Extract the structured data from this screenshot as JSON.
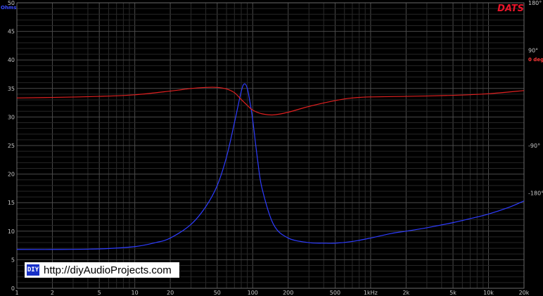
{
  "chart_data": {
    "type": "line",
    "title": "",
    "brand": "DATS",
    "ylabel_left": "Ohms",
    "ylabel_right_zero": "0 deg",
    "x_scale": "log",
    "xlim": [
      1,
      20000
    ],
    "ylim_left": [
      0,
      50
    ],
    "ylim_right": [
      -360,
      180
    ],
    "grid": true,
    "x_ticks": [
      {
        "value": 1,
        "label": "1"
      },
      {
        "value": 2,
        "label": "2"
      },
      {
        "value": 5,
        "label": "5"
      },
      {
        "value": 10,
        "label": "10"
      },
      {
        "value": 20,
        "label": "20"
      },
      {
        "value": 50,
        "label": "50"
      },
      {
        "value": 100,
        "label": "100"
      },
      {
        "value": 200,
        "label": "200"
      },
      {
        "value": 500,
        "label": "500"
      },
      {
        "value": 1000,
        "label": "1kHz"
      },
      {
        "value": 2000,
        "label": "2k"
      },
      {
        "value": 5000,
        "label": "5k"
      },
      {
        "value": 10000,
        "label": "10k"
      },
      {
        "value": 20000,
        "label": "20k"
      }
    ],
    "y_ticks_left": [
      0,
      5,
      10,
      15,
      20,
      25,
      30,
      35,
      40,
      45,
      50
    ],
    "y_ticks_right": [
      {
        "value": 180,
        "label": "180°"
      },
      {
        "value": 90,
        "label": "90°"
      },
      {
        "value": -90,
        "label": "-90°"
      },
      {
        "value": -180,
        "label": "-180°"
      }
    ],
    "series": [
      {
        "axis": "left",
        "color": "#2e3cff",
        "x": [
          1,
          2,
          5,
          10,
          15,
          20,
          30,
          40,
          50,
          60,
          70,
          80,
          85,
          90,
          95,
          100,
          110,
          120,
          150,
          200,
          300,
          400,
          500,
          700,
          1000,
          1500,
          2000,
          3000,
          5000,
          7000,
          10000,
          15000,
          20000
        ],
        "y": [
          6.8,
          6.8,
          6.9,
          7.3,
          8.0,
          8.8,
          11.2,
          14.3,
          18.0,
          23.0,
          29.0,
          34.5,
          35.8,
          35.0,
          32.5,
          29.5,
          22.5,
          17.5,
          11.2,
          8.8,
          8.0,
          7.9,
          7.9,
          8.2,
          8.8,
          9.6,
          10.0,
          10.6,
          11.5,
          12.2,
          13.0,
          14.2,
          15.3
        ]
      },
      {
        "axis": "right",
        "color": "#e02020",
        "x": [
          1,
          2,
          5,
          10,
          20,
          30,
          40,
          50,
          60,
          70,
          80,
          90,
          100,
          120,
          150,
          200,
          300,
          500,
          700,
          1000,
          2000,
          5000,
          10000,
          20000
        ],
        "y": [
          0,
          1,
          3,
          6,
          13,
          18,
          20,
          20,
          17,
          10,
          -3,
          -14,
          -23,
          -30,
          -32,
          -27,
          -16,
          -5,
          0,
          2,
          3,
          5,
          8,
          14
        ]
      }
    ]
  },
  "watermark": {
    "logo": "DIY",
    "url": "http://diyAudioProjects.com"
  }
}
